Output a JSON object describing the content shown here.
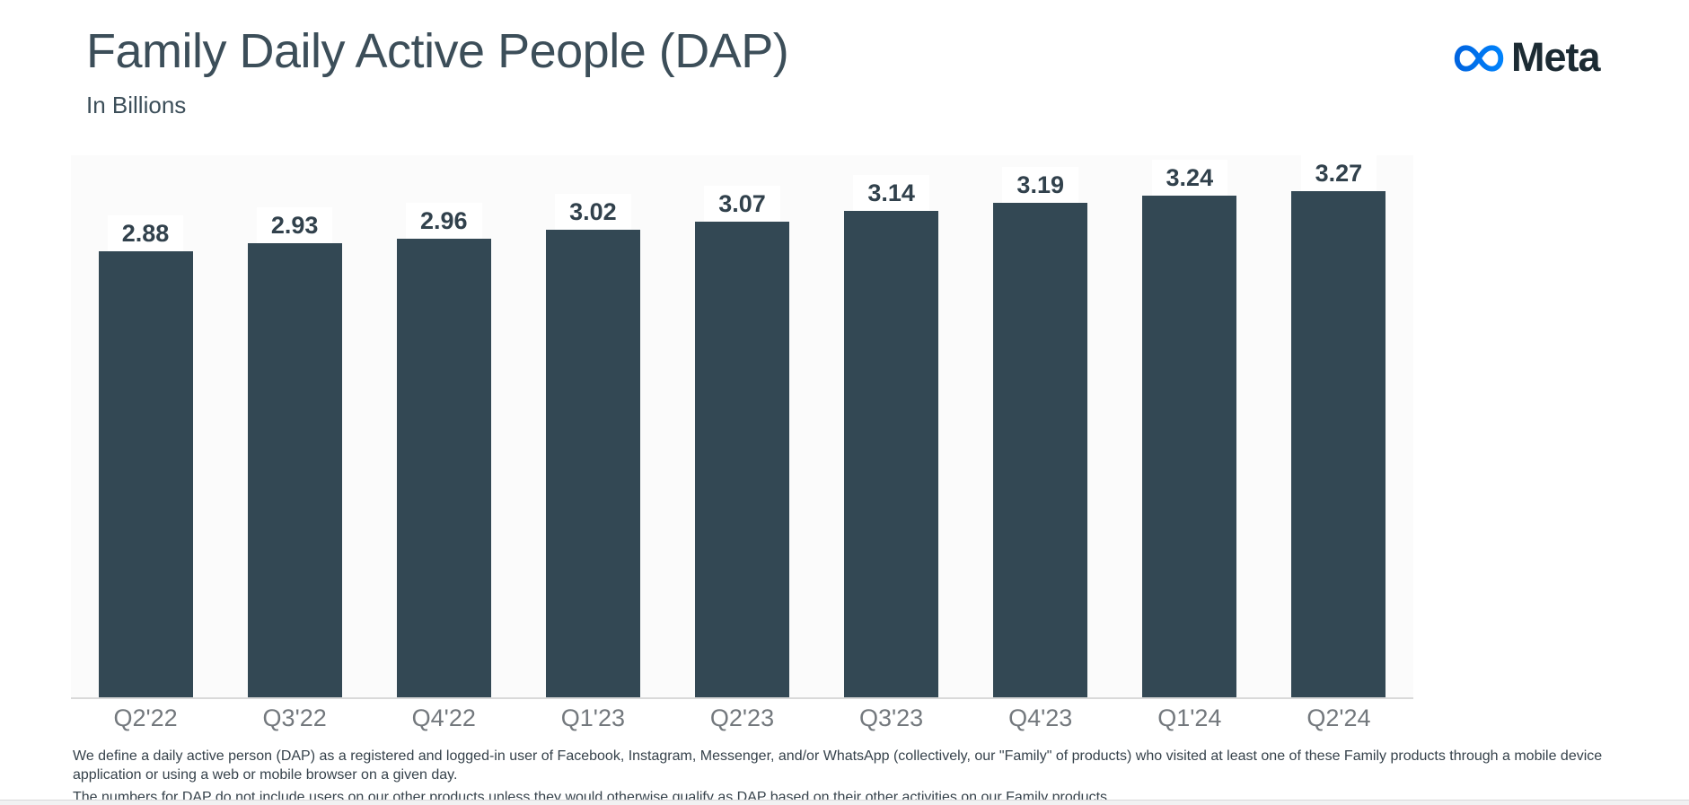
{
  "page": {
    "title": "Family Daily Active People (DAP)",
    "subtitle": "In Billions",
    "logo": {
      "brand": "Meta"
    }
  },
  "chart_data": {
    "type": "bar",
    "title": "Family Daily Active People (DAP)",
    "subtitle": "In Billions",
    "categories": [
      "Q2'22",
      "Q3'22",
      "Q4'22",
      "Q1'23",
      "Q2'23",
      "Q3'23",
      "Q4'23",
      "Q1'24",
      "Q2'24"
    ],
    "values": [
      2.88,
      2.93,
      2.96,
      3.02,
      3.07,
      3.14,
      3.19,
      3.24,
      3.27
    ],
    "value_label_format": "2-decimals",
    "xlabel": "",
    "ylabel": "In Billions",
    "ylim": [
      0,
      3.5
    ],
    "grid": false,
    "legend": "none",
    "value_labels_shown": true
  },
  "footnotes": {
    "para1": "We define a daily active person (DAP) as a registered and logged-in user of Facebook, Instagram, Messenger, and/or WhatsApp (collectively, our \"Family\" of products) who visited at least one of these Family products through a mobile device application or using a web or mobile browser on a given day.",
    "para2": "The numbers for DAP do not include users on our other products unless they would otherwise qualify as DAP based on their other activities on our Family products."
  },
  "colors": {
    "bar": "#334854",
    "title_text": "#3C4E59",
    "value_label_text": "#31414C",
    "axis_label_text": "#73787D",
    "axis_line": "#D9D9D9",
    "plot_background": "#FBFBFB",
    "footnote_text": "#36424B",
    "logo_text": "#1C2B33",
    "logo_blue_start": "#0064E0",
    "logo_blue_end": "#0082FB"
  }
}
